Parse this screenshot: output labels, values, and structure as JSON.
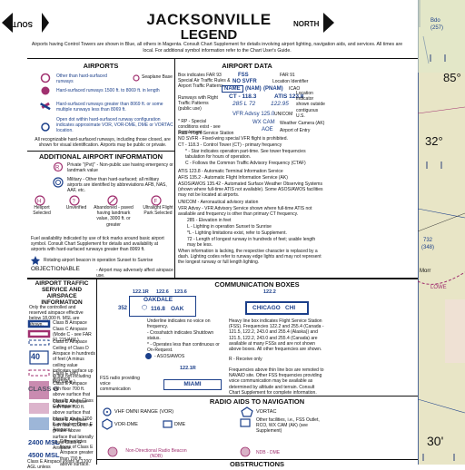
{
  "header": {
    "title": "JACKSONVILLE",
    "subtitle": "LEGEND",
    "south": "SOUTH",
    "north": "NORTH",
    "intro": "Airports having Control Towers are shown in Blue, all others in Magenta. Consult Chart Supplement for details involving airport lighting, navigation aids, and services. All times are local. For additional symbol information refer to the Chart User's Guide."
  },
  "airports": {
    "title": "AIRPORTS",
    "items": [
      {
        "icon": "open-circle-icon",
        "text": "Other than hard-surfaced runways"
      },
      {
        "icon": "seaplane-base-icon",
        "text": "Seaplane Base"
      },
      {
        "icon": "runway-circle-icon",
        "text": "Hard-surfaced runways 1500 ft. to 8069 ft. in length"
      },
      {
        "icon": "runway-pattern-icon",
        "text": "Hard-surfaced runways greater than 8069 ft. or some multiple runways less than 8069 ft."
      },
      {
        "icon": "open-dot-icon",
        "text": "Open dot within hard-surfaced runway configuration indicates approximate VOR, VOR-DME, DME or VORTAC location."
      }
    ],
    "note": "All recognizable hard-surfaced runways, including those closed, are shown for visual identification. Airports may be public or private."
  },
  "additional": {
    "title": "ADDITIONAL AIRPORT INFORMATION",
    "private": "Private \"(Pvt)\" - Non-public use having emergency or landmark value",
    "military": "Military - Other than hard-surfaced; all military airports are identified by abbreviations AFB, NAS, AAF, etc.",
    "types": [
      "Heliport Selected",
      "Unverified",
      "Abandoned - paved having landmark value, 3000 ft. or greater",
      "Ultralight Flight Park Selected"
    ],
    "fuel": "Fuel availability indicated by use of tick marks around basic airport symbol. Consult Chart Supplement for details and availability at airports with hard-surfaced runways greater than 8069 ft.",
    "beacon": "Rotating airport beacon in operation Sunset to Sunrise",
    "objectionable": "OBJECTIONABLE",
    "objectionable_text": "- Airport may adversely affect airspace use."
  },
  "airport_data": {
    "title": "AIRPORT DATA",
    "lines": [
      "Box indicates FAR 93 Special Air Traffic Rules & Airport Traffic Patterns.",
      "Runways with Right Traffic Patterns (public use)",
      "* RP - Special conditions exist - see Supplement.",
      "FSS - Flight Service Station",
      "NO SVFR - Fixed-wing special VFR flight is prohibited.",
      "CT - 118.3 - Control Tower (CT) - primary frequency",
      "* - Star indicates operation part-time. See tower frequencies tabulation for hours of operation.",
      "C - Follows the Common Traffic Advisory Frequency (CTAF)",
      "ATIS 123.8 - Automatic Terminal Information Service",
      "AFIS 135.2 - Automatic Flight Information Service (AK)",
      "ASOS/AWOS 135.42 - Automated Surface Weather Observing Systems (shown where full-time ATIS not available). Some ASOS/AWOS facilities may not be located at airports.",
      "UNICOM - Aeronautical advisory station",
      "VFR Advsy - VFR Advisory Service shown where full-time ATIS not available and frequency is other than primary CT frequency.",
      "285 - Elevation in feet",
      "L - Lighting in operation Sunset to Sunrise",
      "*L - Lighting limitations exist, refer to Supplement.",
      "72 - Length of longest runway in hundreds of feet; usable length may be less.",
      "When information is lacking, the respective character is replaced by a dash. Lighting codes refer to runway edge lights and may not represent the longest runway or full length lighting."
    ],
    "sample": {
      "fss": "FSS",
      "nosvfr": "NO SVFR",
      "far91": "FAR 91",
      "loc_id": "Location Identifier",
      "name": "NAME",
      "nam": "(NAM)",
      "pnam": "(PNAM)",
      "icao": "ICAO",
      "ct": "CT - 118.3",
      "atis": "ATIS 123.8",
      "loc_ind": "Location Indicator shown outside contiguous U.S.",
      "elev": "285 L 72",
      "unicom_f": "122.95",
      "unicom": "UNICOM",
      "vfr": "VFR Advsy 125.0",
      "wxcam": "WX CAM",
      "weather": "Weather Camera (AK)",
      "aoe": "AOE",
      "aoe_text": "Airport of Entry"
    }
  },
  "airspace": {
    "title": "AIRPORT TRAFFIC SERVICE AND AIRSPACE INFORMATION",
    "intro": "Only the controlled and reserved airspace effective below 18,000 ft. MSL are shown.",
    "items": [
      "Class B Airspace",
      "Class C Airspace (Mode C - see FAR 91.215/AIM.)",
      "Class D Airspace",
      "Ceiling of Class D Airspace in hundreds of feet (A minus ceiling value indicates surface up to but not including that value.)",
      "Class E (sfc) Airspace",
      "Class E Airspace with floor 700 ft. above surface that laterally abuts Class G Airspace.",
      "Class E Airspace with floor 700 ft. above surface that laterally abuts 1200 ft. or higher Class E Airspace.",
      "Class E Airspace with floor 1200 ft. or greater above surface that laterally abuts Class G Airspace.",
      "Differentiates floors of Class E Airspace greater than 700 ft. above surface.",
      "Class E Airspace exists at 1200' AGL unless"
    ],
    "ceiling": "40",
    "classg": "CLASS G",
    "msl1": "2400  MSL",
    "msl2": "4500  MSL"
  },
  "comm": {
    "title": "COMMUNICATION BOXES",
    "freqs": [
      "122.1R",
      "122.6",
      "123.6"
    ],
    "oakdale": "OAKDALE",
    "oak_num": "352",
    "oak_id": "OAK",
    "oak_freq": "116.8",
    "underline": "Underline indicates no voice on frequency.",
    "crosshatch": "- Crosshatch indicates Shutdown status.",
    "star": "* - Operates less than continuous or On-Request.",
    "asos": "- ASOS/AWOS",
    "fss_radio": "FSS radio providing voice communication",
    "miami_freq": "122.1R",
    "miami": "MIAMI",
    "chicago_freq": "122.2",
    "chicago": "CHICAGO",
    "chi": "CHI",
    "heavy": "Heavy line box indicates Flight Service Station (FSS). Frequencies 122.2 and 255.4 (Canada - 121.5, 122.2, 243.0 and 255.4 (Alaska)) and 121.5, 122.2, 243.0 and 255.4 (Canada) are available at many FSSs and are not shown above boxes. All other frequencies are shown.",
    "receive": "R - Receive only",
    "above": "Frequencies above thin line box are remoted to NAVAID site. Other FSS frequencies providing voice communication may be available as determined by altitude and terrain. Consult Chart Supplement for complete information."
  },
  "radio": {
    "title": "RADIO AIDS TO NAVIGATION",
    "items": [
      {
        "icon": "vhf-omni-icon",
        "label": "VHF OMNI RANGE (VOR)"
      },
      {
        "icon": "vortac-icon",
        "label": "VORTAC"
      },
      {
        "icon": "vor-dme-icon",
        "label": "VOR-DME"
      },
      {
        "icon": "dme-icon",
        "label": "DME"
      },
      {
        "icon": "other-facilities-icon",
        "label": "Other facilities, i.e., FSS Outlet, RCO, WX CAM (AK) (see Supplement)"
      },
      {
        "icon": "ndb-icon",
        "label": "Non-Directional Radio Beacon (NDB)"
      },
      {
        "icon": "ndb-dme-icon",
        "label": "NDB - DME"
      }
    ]
  },
  "obstructions": {
    "title": "OBSTRUCTIONS"
  },
  "chart_strip": {
    "labels": [
      "85°",
      "32°",
      "30'"
    ],
    "small": [
      "(257)",
      "Bdo",
      "732",
      "(348)",
      "Morr",
      "LOWE"
    ]
  },
  "colors": {
    "blue": "#1b3f8a",
    "magenta": "#a0306f",
    "chart_bg": "#e8e5c6"
  }
}
